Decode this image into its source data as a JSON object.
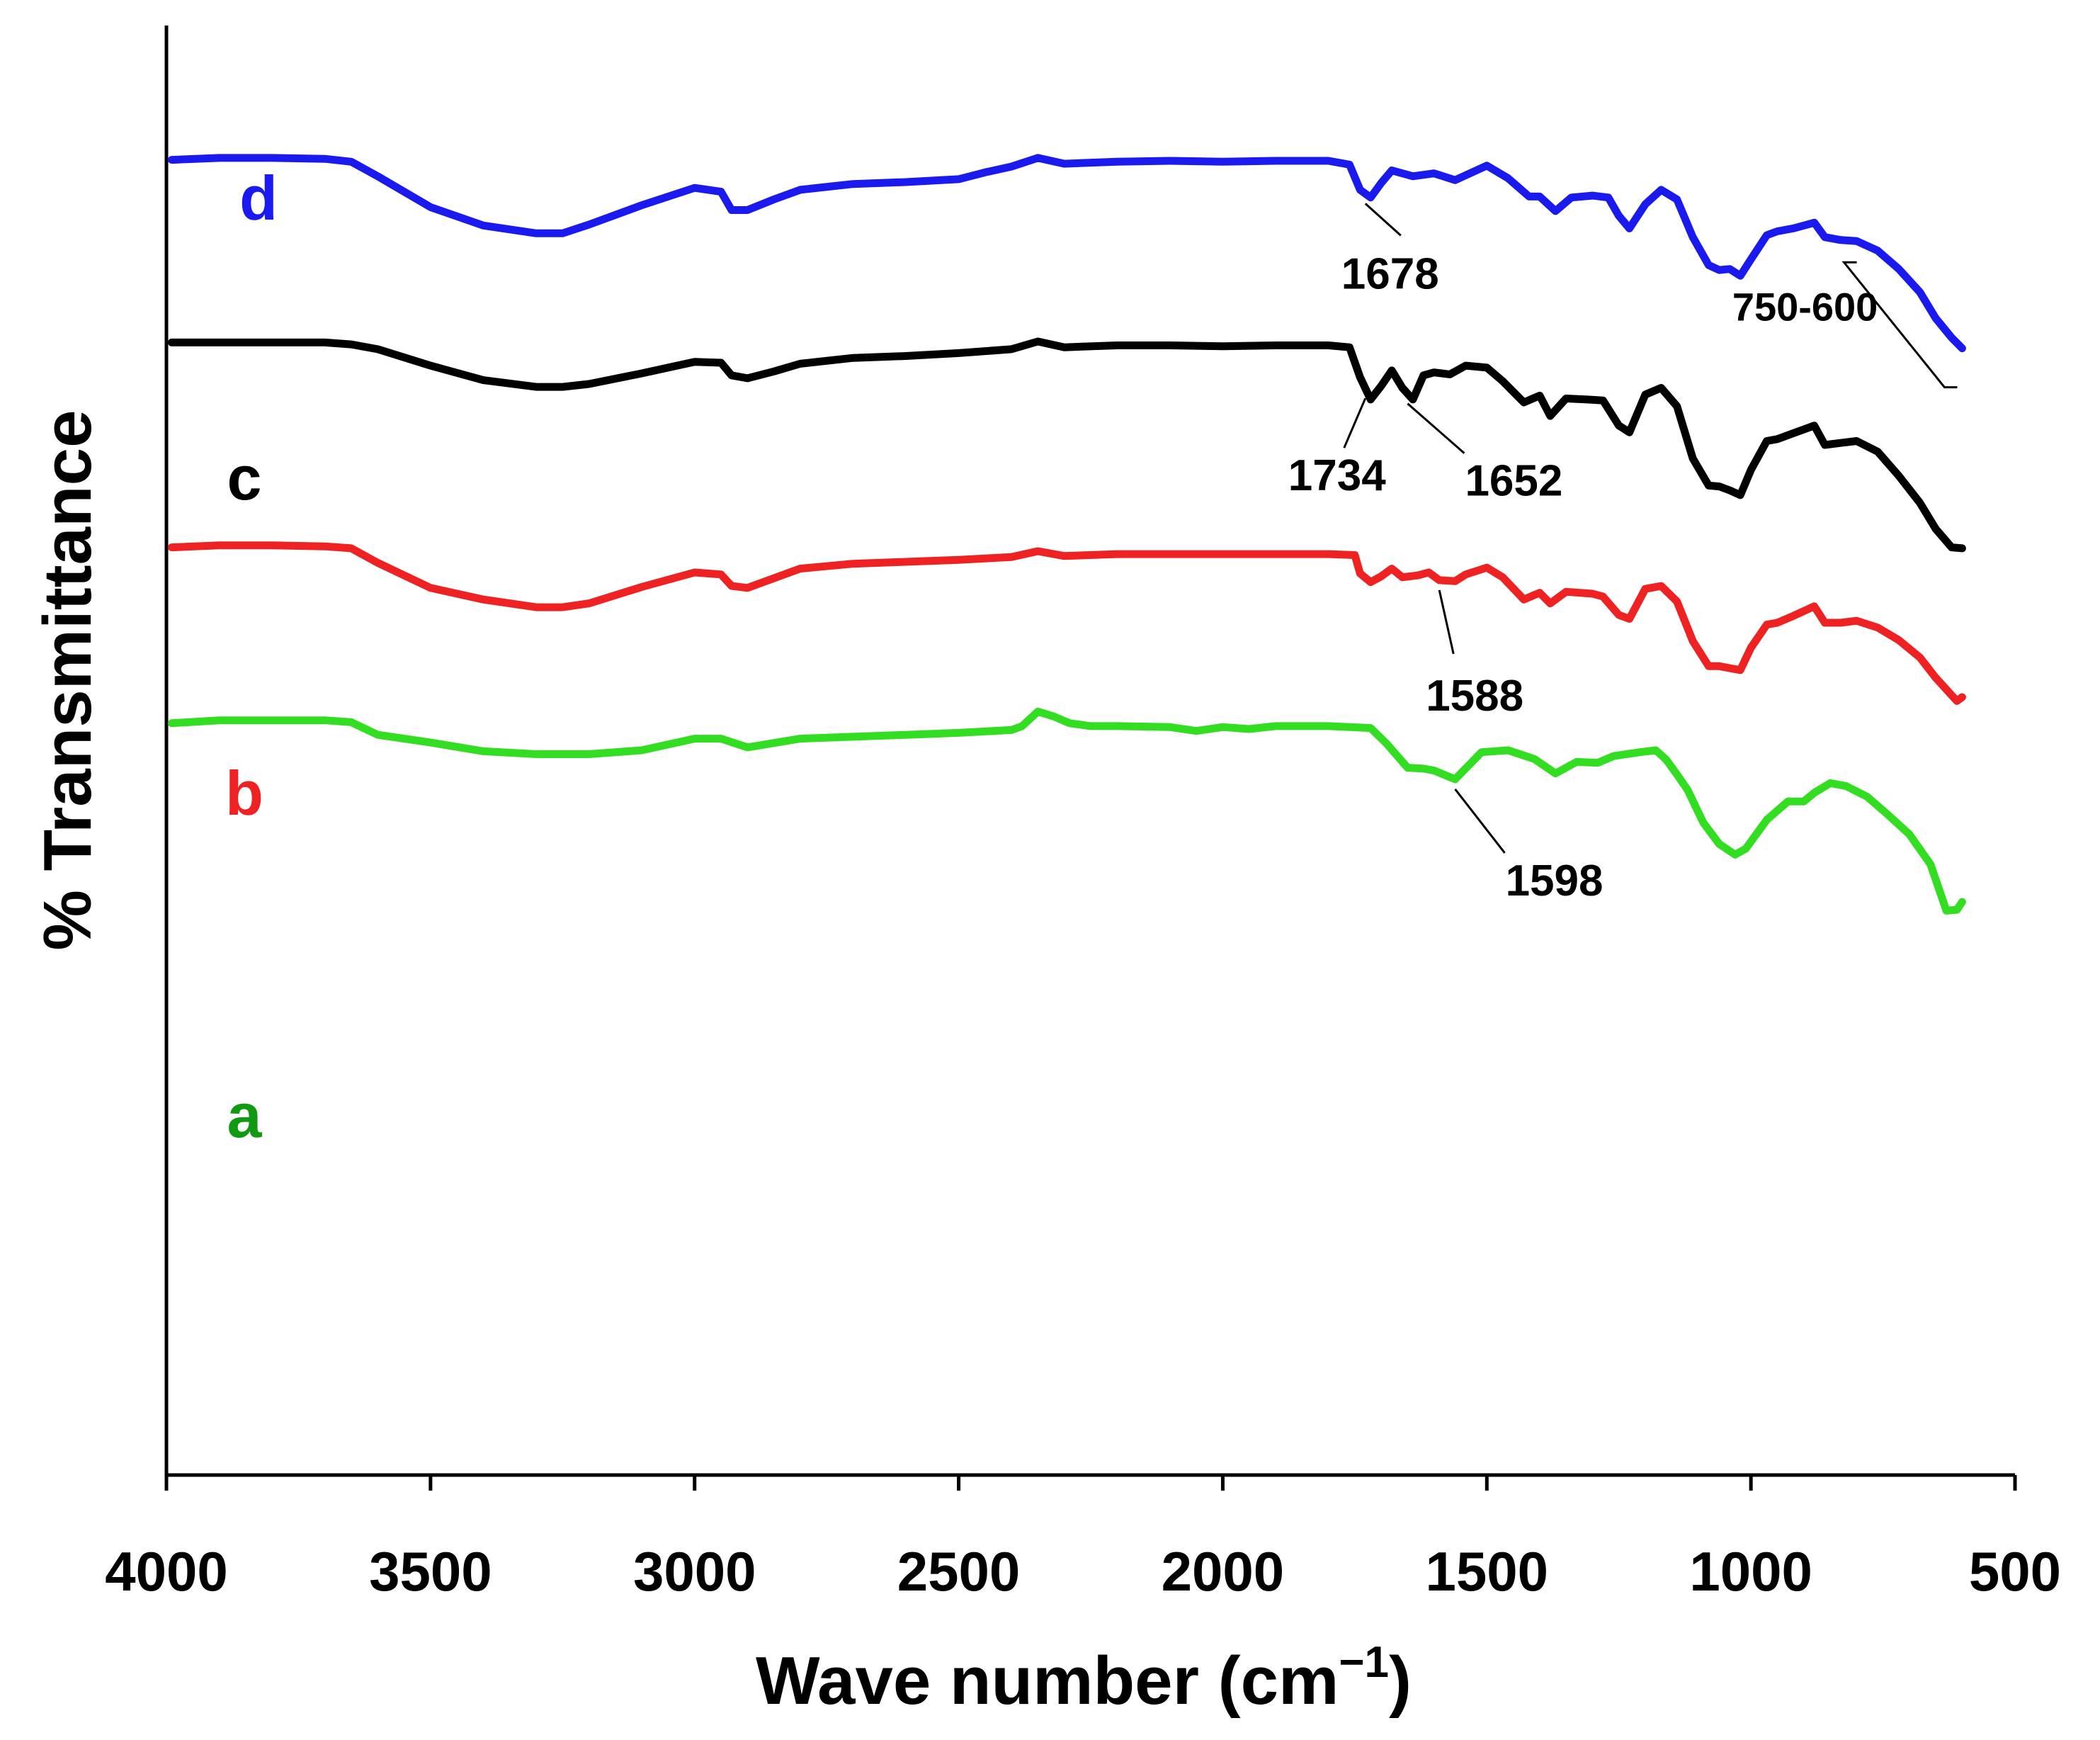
{
  "chart_data": {
    "type": "line",
    "title": "",
    "xlabel": "Wave number (cm",
    "xlabel_sup": "−1",
    "xlabel_close": ")",
    "ylabel": "% Transmittance",
    "xlim": [
      4000,
      500
    ],
    "x_reversed": true,
    "ylim": [
      0,
      100
    ],
    "x_ticks": [
      4000,
      3500,
      3000,
      2500,
      2000,
      1500,
      1000,
      500
    ],
    "x_tick_labels": [
      "4000",
      "3500",
      "3000",
      "2500",
      "2000",
      "1500",
      "1000",
      "500"
    ],
    "y_ticks_shown": false,
    "grid": false,
    "series": [
      {
        "name": "a",
        "color": "#33dd22",
        "label_color": "#119911",
        "points": [
          [
            3990,
            77.8
          ],
          [
            3900,
            78.1
          ],
          [
            3800,
            78.1
          ],
          [
            3700,
            78.1
          ],
          [
            3650,
            77.9
          ],
          [
            3600,
            76.6
          ],
          [
            3500,
            75.8
          ],
          [
            3400,
            74.9
          ],
          [
            3300,
            74.6
          ],
          [
            3200,
            74.6
          ],
          [
            3100,
            75.0
          ],
          [
            3000,
            76.2
          ],
          [
            2950,
            76.2
          ],
          [
            2900,
            75.3
          ],
          [
            2800,
            76.2
          ],
          [
            2700,
            76.4
          ],
          [
            2600,
            76.6
          ],
          [
            2500,
            76.8
          ],
          [
            2400,
            77.1
          ],
          [
            2380,
            77.5
          ],
          [
            2350,
            79.0
          ],
          [
            2320,
            78.5
          ],
          [
            2290,
            77.8
          ],
          [
            2250,
            77.5
          ],
          [
            2200,
            77.5
          ],
          [
            2100,
            77.4
          ],
          [
            2050,
            77.0
          ],
          [
            2000,
            77.4
          ],
          [
            1950,
            77.2
          ],
          [
            1900,
            77.5
          ],
          [
            1800,
            77.5
          ],
          [
            1760,
            77.4
          ],
          [
            1720,
            77.3
          ],
          [
            1690,
            75.7
          ],
          [
            1650,
            73.2
          ],
          [
            1620,
            73.1
          ],
          [
            1600,
            72.9
          ],
          [
            1560,
            72.0
          ],
          [
            1510,
            74.8
          ],
          [
            1460,
            75.0
          ],
          [
            1410,
            74.1
          ],
          [
            1370,
            72.6
          ],
          [
            1330,
            73.8
          ],
          [
            1290,
            73.7
          ],
          [
            1260,
            74.4
          ],
          [
            1210,
            74.8
          ],
          [
            1180,
            75.0
          ],
          [
            1160,
            74.0
          ],
          [
            1140,
            72.5
          ],
          [
            1120,
            70.9
          ],
          [
            1090,
            67.5
          ],
          [
            1060,
            65.3
          ],
          [
            1030,
            64.2
          ],
          [
            1010,
            64.8
          ],
          [
            970,
            67.8
          ],
          [
            930,
            69.7
          ],
          [
            900,
            69.7
          ],
          [
            880,
            70.6
          ],
          [
            850,
            71.6
          ],
          [
            820,
            71.3
          ],
          [
            780,
            70.2
          ],
          [
            740,
            68.3
          ],
          [
            700,
            66.3
          ],
          [
            660,
            63.2
          ],
          [
            630,
            58.4
          ],
          [
            610,
            58.5
          ],
          [
            600,
            59.3
          ]
        ]
      },
      {
        "name": "b",
        "color": "#ee2222",
        "label_color": "#ee2222",
        "points": [
          [
            3990,
            96.0
          ],
          [
            3900,
            96.2
          ],
          [
            3800,
            96.2
          ],
          [
            3700,
            96.1
          ],
          [
            3650,
            95.9
          ],
          [
            3600,
            94.4
          ],
          [
            3500,
            91.8
          ],
          [
            3400,
            90.6
          ],
          [
            3300,
            89.8
          ],
          [
            3250,
            89.8
          ],
          [
            3200,
            90.2
          ],
          [
            3100,
            91.9
          ],
          [
            3000,
            93.4
          ],
          [
            2950,
            93.2
          ],
          [
            2930,
            92.0
          ],
          [
            2900,
            91.8
          ],
          [
            2850,
            92.8
          ],
          [
            2800,
            93.8
          ],
          [
            2700,
            94.3
          ],
          [
            2600,
            94.5
          ],
          [
            2500,
            94.7
          ],
          [
            2400,
            95.0
          ],
          [
            2350,
            95.6
          ],
          [
            2300,
            95.1
          ],
          [
            2200,
            95.3
          ],
          [
            2100,
            95.3
          ],
          [
            2000,
            95.3
          ],
          [
            1900,
            95.3
          ],
          [
            1800,
            95.3
          ],
          [
            1750,
            95.2
          ],
          [
            1740,
            93.3
          ],
          [
            1720,
            92.4
          ],
          [
            1700,
            93.0
          ],
          [
            1680,
            93.8
          ],
          [
            1660,
            92.9
          ],
          [
            1630,
            93.1
          ],
          [
            1610,
            93.4
          ],
          [
            1590,
            92.6
          ],
          [
            1560,
            92.5
          ],
          [
            1540,
            93.2
          ],
          [
            1500,
            93.9
          ],
          [
            1470,
            92.9
          ],
          [
            1430,
            90.6
          ],
          [
            1400,
            91.3
          ],
          [
            1380,
            90.2
          ],
          [
            1350,
            91.4
          ],
          [
            1300,
            91.2
          ],
          [
            1280,
            90.9
          ],
          [
            1250,
            89.0
          ],
          [
            1230,
            88.6
          ],
          [
            1200,
            91.7
          ],
          [
            1170,
            92.0
          ],
          [
            1140,
            90.4
          ],
          [
            1110,
            86.3
          ],
          [
            1080,
            83.7
          ],
          [
            1060,
            83.7
          ],
          [
            1040,
            83.5
          ],
          [
            1020,
            83.3
          ],
          [
            1000,
            85.6
          ],
          [
            970,
            88.0
          ],
          [
            950,
            88.2
          ],
          [
            920,
            88.9
          ],
          [
            880,
            89.9
          ],
          [
            860,
            88.2
          ],
          [
            830,
            88.2
          ],
          [
            800,
            88.4
          ],
          [
            760,
            87.7
          ],
          [
            720,
            86.4
          ],
          [
            680,
            84.6
          ],
          [
            650,
            82.5
          ],
          [
            620,
            80.7
          ],
          [
            610,
            80.1
          ],
          [
            600,
            80.5
          ]
        ]
      },
      {
        "name": "c",
        "color": "#000000",
        "label_color": "#000000",
        "points": [
          [
            3990,
            117.2
          ],
          [
            3900,
            117.2
          ],
          [
            3800,
            117.2
          ],
          [
            3700,
            117.2
          ],
          [
            3650,
            117.0
          ],
          [
            3600,
            116.5
          ],
          [
            3500,
            114.8
          ],
          [
            3400,
            113.3
          ],
          [
            3300,
            112.6
          ],
          [
            3250,
            112.6
          ],
          [
            3200,
            112.9
          ],
          [
            3100,
            114.0
          ],
          [
            3000,
            115.2
          ],
          [
            2950,
            115.1
          ],
          [
            2930,
            113.8
          ],
          [
            2900,
            113.5
          ],
          [
            2850,
            114.2
          ],
          [
            2800,
            115.0
          ],
          [
            2700,
            115.6
          ],
          [
            2600,
            115.8
          ],
          [
            2500,
            116.1
          ],
          [
            2400,
            116.5
          ],
          [
            2350,
            117.3
          ],
          [
            2300,
            116.7
          ],
          [
            2200,
            116.9
          ],
          [
            2100,
            116.9
          ],
          [
            2000,
            116.8
          ],
          [
            1900,
            116.9
          ],
          [
            1800,
            116.9
          ],
          [
            1760,
            116.7
          ],
          [
            1740,
            113.6
          ],
          [
            1720,
            111.3
          ],
          [
            1700,
            112.7
          ],
          [
            1680,
            114.3
          ],
          [
            1660,
            112.5
          ],
          [
            1640,
            111.3
          ],
          [
            1620,
            113.8
          ],
          [
            1600,
            114.1
          ],
          [
            1570,
            113.9
          ],
          [
            1540,
            114.8
          ],
          [
            1500,
            114.6
          ],
          [
            1470,
            113.2
          ],
          [
            1430,
            111.0
          ],
          [
            1400,
            111.7
          ],
          [
            1380,
            109.6
          ],
          [
            1350,
            111.4
          ],
          [
            1310,
            111.3
          ],
          [
            1280,
            111.2
          ],
          [
            1250,
            108.6
          ],
          [
            1230,
            107.9
          ],
          [
            1200,
            111.8
          ],
          [
            1170,
            112.5
          ],
          [
            1140,
            110.6
          ],
          [
            1110,
            105.2
          ],
          [
            1080,
            102.4
          ],
          [
            1060,
            102.3
          ],
          [
            1040,
            101.9
          ],
          [
            1020,
            101.4
          ],
          [
            1000,
            104.0
          ],
          [
            970,
            107.0
          ],
          [
            950,
            107.2
          ],
          [
            920,
            107.8
          ],
          [
            880,
            108.6
          ],
          [
            860,
            106.6
          ],
          [
            830,
            106.8
          ],
          [
            800,
            107.0
          ],
          [
            760,
            105.9
          ],
          [
            720,
            103.4
          ],
          [
            680,
            100.6
          ],
          [
            650,
            97.9
          ],
          [
            620,
            96.0
          ],
          [
            600,
            95.9
          ]
        ]
      },
      {
        "name": "d",
        "color": "#1a1aee",
        "label_color": "#1a1aee",
        "points": [
          [
            3990,
            136.1
          ],
          [
            3900,
            136.3
          ],
          [
            3800,
            136.3
          ],
          [
            3700,
            136.2
          ],
          [
            3650,
            135.9
          ],
          [
            3600,
            134.4
          ],
          [
            3500,
            131.2
          ],
          [
            3400,
            129.3
          ],
          [
            3300,
            128.5
          ],
          [
            3250,
            128.5
          ],
          [
            3200,
            129.4
          ],
          [
            3100,
            131.4
          ],
          [
            3000,
            133.2
          ],
          [
            2950,
            132.8
          ],
          [
            2930,
            130.9
          ],
          [
            2900,
            130.9
          ],
          [
            2850,
            132.0
          ],
          [
            2800,
            133.0
          ],
          [
            2700,
            133.6
          ],
          [
            2600,
            133.8
          ],
          [
            2500,
            134.1
          ],
          [
            2450,
            134.8
          ],
          [
            2400,
            135.4
          ],
          [
            2350,
            136.3
          ],
          [
            2300,
            135.7
          ],
          [
            2200,
            135.9
          ],
          [
            2100,
            136.0
          ],
          [
            2000,
            135.9
          ],
          [
            1900,
            136.0
          ],
          [
            1800,
            136.0
          ],
          [
            1760,
            135.6
          ],
          [
            1740,
            133.0
          ],
          [
            1720,
            132.2
          ],
          [
            1700,
            133.7
          ],
          [
            1680,
            135.0
          ],
          [
            1640,
            134.4
          ],
          [
            1600,
            134.7
          ],
          [
            1560,
            134.0
          ],
          [
            1500,
            135.5
          ],
          [
            1460,
            134.2
          ],
          [
            1420,
            132.3
          ],
          [
            1400,
            132.3
          ],
          [
            1370,
            130.8
          ],
          [
            1340,
            132.2
          ],
          [
            1300,
            132.4
          ],
          [
            1270,
            132.2
          ],
          [
            1250,
            130.3
          ],
          [
            1230,
            129.0
          ],
          [
            1200,
            131.5
          ],
          [
            1170,
            133.0
          ],
          [
            1140,
            132.0
          ],
          [
            1110,
            128.1
          ],
          [
            1080,
            125.2
          ],
          [
            1060,
            124.7
          ],
          [
            1040,
            124.8
          ],
          [
            1020,
            124.1
          ],
          [
            1000,
            125.8
          ],
          [
            970,
            128.3
          ],
          [
            950,
            128.7
          ],
          [
            920,
            129.0
          ],
          [
            880,
            129.6
          ],
          [
            860,
            128.1
          ],
          [
            830,
            127.8
          ],
          [
            800,
            127.7
          ],
          [
            760,
            126.7
          ],
          [
            720,
            124.8
          ],
          [
            680,
            122.4
          ],
          [
            650,
            119.7
          ],
          [
            620,
            117.7
          ],
          [
            600,
            116.6
          ]
        ]
      }
    ],
    "series_labels": [
      "a",
      "b",
      "c",
      "d"
    ],
    "annotations": [
      {
        "text": "1598",
        "series": "a",
        "x": 1560
      },
      {
        "text": "1588",
        "series": "b",
        "x": 1590
      },
      {
        "text": "1734",
        "series": "c",
        "x": 1730
      },
      {
        "text": "1652",
        "series": "c",
        "x": 1650
      },
      {
        "text": "1678",
        "series": "d",
        "x": 1730
      },
      {
        "text": "750-600",
        "series": "d",
        "x_range": [
          750,
          600
        ]
      }
    ]
  }
}
